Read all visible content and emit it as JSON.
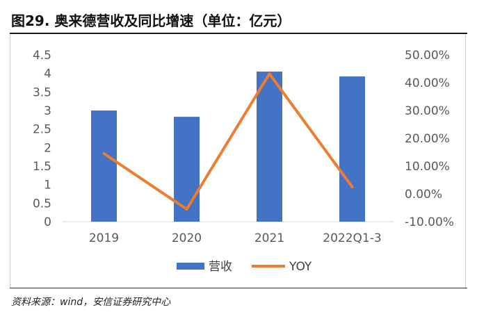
{
  "title": "图29. 奥来德营收及同比增速（单位：亿元）",
  "source": "资料来源：wind，安信证券研究中心",
  "chart_data": {
    "type": "bar",
    "categories": [
      "2019",
      "2020",
      "2021",
      "2022Q1-3"
    ],
    "series": [
      {
        "name": "营收",
        "type": "bar",
        "axis": "left",
        "color": "#4472C4",
        "values": [
          3.0,
          2.83,
          4.05,
          3.92
        ]
      },
      {
        "name": "YOY",
        "type": "line",
        "axis": "right",
        "color": "#ED7D31",
        "values": [
          14.5,
          -5.5,
          43.2,
          2.5
        ]
      }
    ],
    "ylim": [
      0,
      4.5
    ],
    "y2lim": [
      -10,
      50
    ],
    "y_ticks": [
      "0",
      "0.5",
      "1",
      "1.5",
      "2",
      "2.5",
      "3",
      "3.5",
      "4",
      "4.5"
    ],
    "y2_ticks": [
      "-10.00%",
      "0.00%",
      "10.00%",
      "20.00%",
      "30.00%",
      "40.00%",
      "50.00%"
    ],
    "grid": false,
    "legend": "bottom"
  }
}
